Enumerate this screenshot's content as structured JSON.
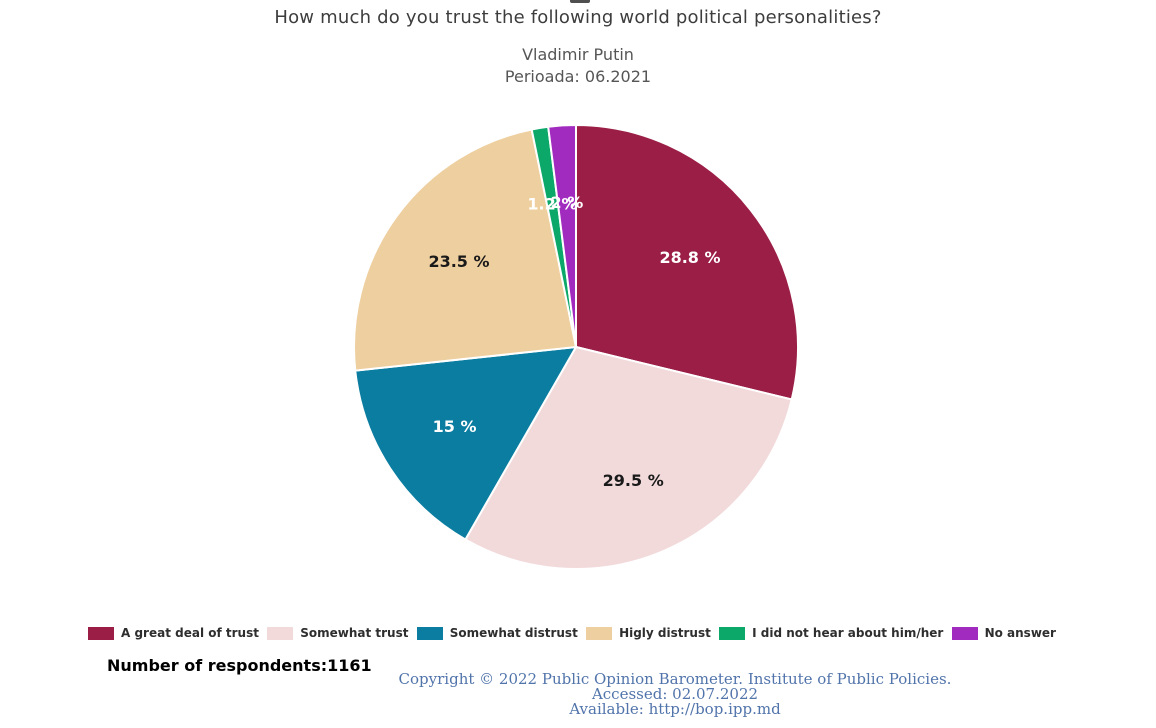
{
  "header": {
    "title": "How much do you trust the following world political personalities?",
    "subtitle_line1": "Vladimir Putin",
    "subtitle_line2": "Perioada: 06.2021"
  },
  "chart_data": {
    "type": "pie",
    "title": "How much do you trust the following world political personalities?",
    "subtitle": "Vladimir Putin — Perioada: 06.2021",
    "start_angle_deg": 0,
    "direction": "clockwise",
    "legend_position": "bottom",
    "slices": [
      {
        "label": "A great deal of trust",
        "value": 28.8,
        "display": "28.8 %",
        "color": "#9b1e46",
        "text_color": "#ffffff"
      },
      {
        "label": "Somewhat trust",
        "value": 29.5,
        "display": "29.5 %",
        "color": "#f2dadb",
        "text_color": "#1a1a1a"
      },
      {
        "label": "Somewhat distrust",
        "value": 15,
        "display": "15 %",
        "color": "#0b7da0",
        "text_color": "#ffffff"
      },
      {
        "label": "Higly distrust",
        "value": 23.5,
        "display": "23.5 %",
        "color": "#eecf9f",
        "text_color": "#1a1a1a"
      },
      {
        "label": "I did not hear about him/her",
        "value": 1.2,
        "display": "1.2 %",
        "color": "#0ca869",
        "text_color": "#ffffff"
      },
      {
        "label": "No answer",
        "value": 2,
        "display": "2 %",
        "color": "#a22bbf",
        "text_color": "#ffffff"
      }
    ]
  },
  "footer": {
    "respondents": "Number of respondents:1161",
    "copyright_line1": "Copyright © 2022 Public Opinion Barometer. Institute of Public Policies.",
    "copyright_line2": "Accessed: 02.07.2022",
    "copyright_line3": "Available: http://bop.ipp.md"
  }
}
